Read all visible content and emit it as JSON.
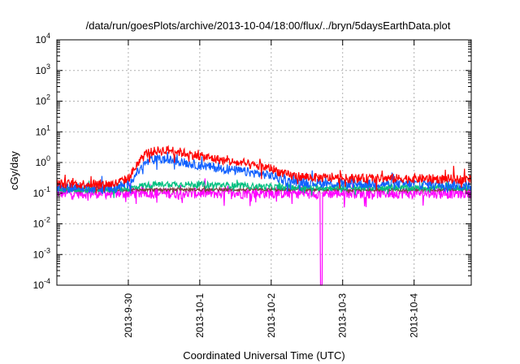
{
  "chart_data": {
    "type": "line",
    "title": "/data/run/goesPlots/archive/2013-10-04/18:00/flux/../bryn/5daysEarthData.plot",
    "xlabel": "Coordinated Universal Time (UTC)",
    "ylabel": "cGy/day",
    "yscale": "log",
    "ylim": [
      0.0001,
      10000
    ],
    "xlim_days_from_2013_09_29": [
      0.0,
      5.8
    ],
    "x_ticks": [
      {
        "label": "2013-9-30",
        "day": 1.0
      },
      {
        "label": "2013-10-1",
        "day": 2.0
      },
      {
        "label": "2013-10-2",
        "day": 3.0
      },
      {
        "label": "2013-10-3",
        "day": 4.0
      },
      {
        "label": "2013-10-4",
        "day": 5.0
      }
    ],
    "y_ticks": [
      {
        "base": "10",
        "exp": "4",
        "value": 10000
      },
      {
        "base": "10",
        "exp": "3",
        "value": 1000
      },
      {
        "base": "10",
        "exp": "2",
        "value": 100
      },
      {
        "base": "10",
        "exp": "1",
        "value": 10
      },
      {
        "base": "10",
        "exp": "0",
        "value": 1
      },
      {
        "base": "10",
        "exp": "-1",
        "value": 0.1
      },
      {
        "base": "10",
        "exp": "-2",
        "value": 0.01
      },
      {
        "base": "10",
        "exp": "-3",
        "value": 0.001
      },
      {
        "base": "10",
        "exp": "-4",
        "value": 0.0001
      }
    ],
    "grid": true,
    "series": [
      {
        "color": "#ff00ff",
        "noise": 0.18,
        "points": [
          [
            0.0,
            0.1
          ],
          [
            0.5,
            0.1
          ],
          [
            1.0,
            0.1
          ],
          [
            1.5,
            0.1
          ],
          [
            2.0,
            0.1
          ],
          [
            2.5,
            0.1
          ],
          [
            3.0,
            0.1
          ],
          [
            3.5,
            0.1
          ],
          [
            3.69,
            0.1
          ],
          [
            3.7,
            0.0001
          ],
          [
            3.71,
            0.1
          ],
          [
            4.0,
            0.1
          ],
          [
            4.5,
            0.1
          ],
          [
            5.0,
            0.1
          ],
          [
            5.5,
            0.1
          ],
          [
            5.8,
            0.1
          ]
        ]
      },
      {
        "color": "#804040",
        "noise": 0.05,
        "points": [
          [
            0.0,
            0.13
          ],
          [
            1.0,
            0.13
          ],
          [
            2.0,
            0.13
          ],
          [
            3.0,
            0.13
          ],
          [
            4.0,
            0.13
          ],
          [
            5.0,
            0.13
          ],
          [
            5.8,
            0.13
          ]
        ]
      },
      {
        "color": "#00c080",
        "noise": 0.1,
        "points": [
          [
            0.0,
            0.13
          ],
          [
            0.8,
            0.13
          ],
          [
            1.0,
            0.14
          ],
          [
            1.2,
            0.18
          ],
          [
            1.5,
            0.2
          ],
          [
            2.0,
            0.19
          ],
          [
            2.5,
            0.18
          ],
          [
            3.0,
            0.16
          ],
          [
            3.5,
            0.15
          ],
          [
            4.0,
            0.15
          ],
          [
            5.0,
            0.15
          ],
          [
            5.8,
            0.15
          ]
        ]
      },
      {
        "color": "#1060ff",
        "noise": 0.15,
        "points": [
          [
            0.0,
            0.15
          ],
          [
            0.8,
            0.15
          ],
          [
            1.0,
            0.2
          ],
          [
            1.1,
            0.4
          ],
          [
            1.25,
            1.0
          ],
          [
            1.4,
            1.3
          ],
          [
            1.6,
            1.2
          ],
          [
            2.0,
            0.8
          ],
          [
            2.5,
            0.55
          ],
          [
            3.0,
            0.38
          ],
          [
            3.2,
            0.25
          ],
          [
            3.5,
            0.22
          ],
          [
            4.0,
            0.2
          ],
          [
            5.0,
            0.2
          ],
          [
            5.8,
            0.18
          ]
        ]
      },
      {
        "color": "#ff0000",
        "noise": 0.15,
        "points": [
          [
            0.0,
            0.2
          ],
          [
            0.8,
            0.2
          ],
          [
            1.0,
            0.3
          ],
          [
            1.1,
            0.7
          ],
          [
            1.25,
            2.0
          ],
          [
            1.4,
            2.4
          ],
          [
            1.6,
            2.5
          ],
          [
            1.8,
            2.0
          ],
          [
            2.0,
            1.6
          ],
          [
            2.5,
            1.0
          ],
          [
            3.0,
            0.65
          ],
          [
            3.2,
            0.4
          ],
          [
            3.5,
            0.33
          ],
          [
            4.0,
            0.3
          ],
          [
            5.0,
            0.3
          ],
          [
            5.8,
            0.28
          ]
        ]
      }
    ]
  }
}
